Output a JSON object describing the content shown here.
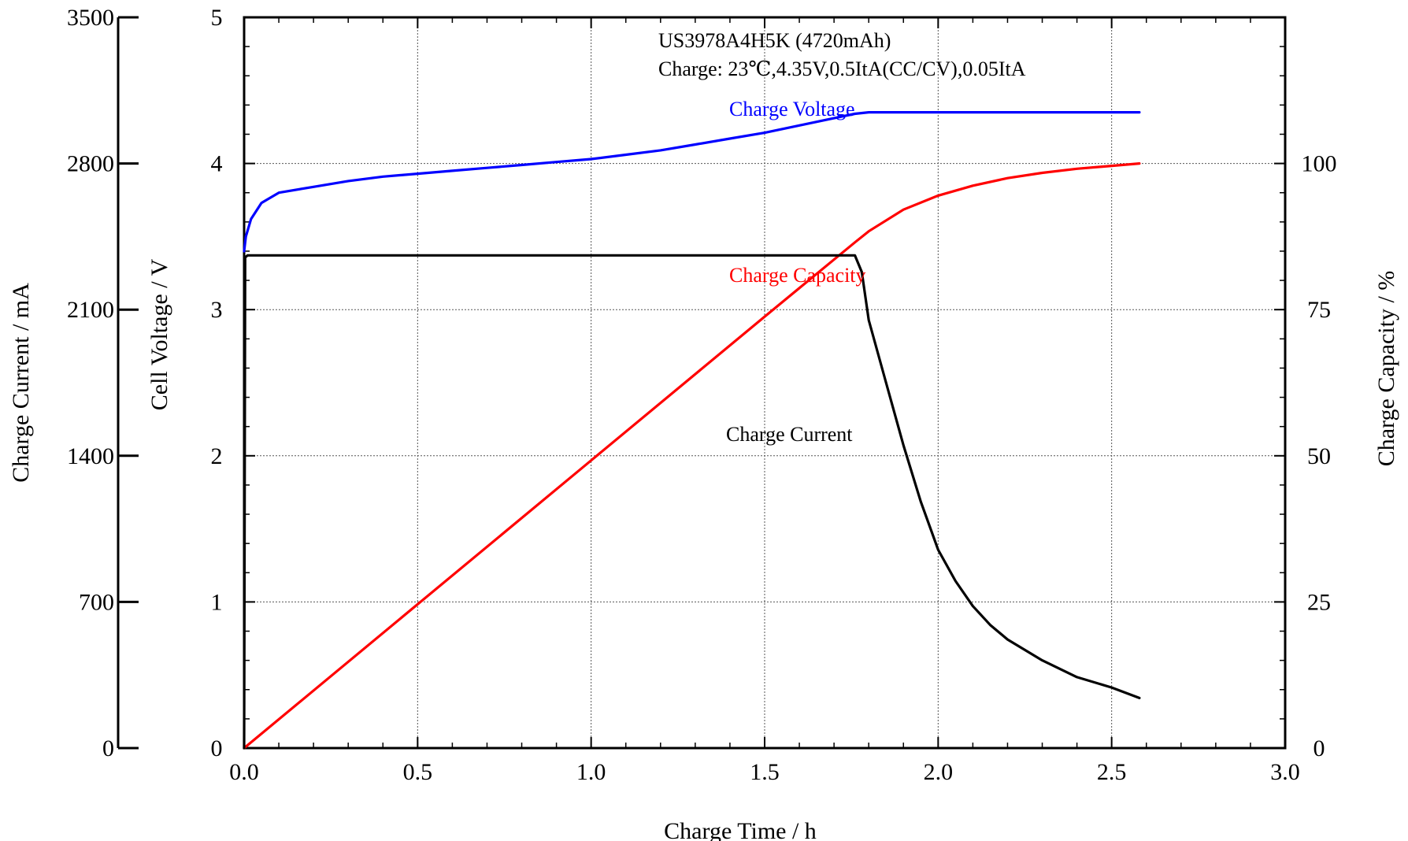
{
  "chart_data": {
    "type": "line",
    "title": "",
    "annotations": [
      "US3978A4H5K (4720mAh)",
      "Charge: 23℃,4.35V,0.5ItA(CC/CV),0.05ItA"
    ],
    "xlabel": "Charge Time / h",
    "xlim": [
      0,
      3.0
    ],
    "xticks": [
      "0.0",
      "0.5",
      "1.0",
      "1.5",
      "2.0",
      "2.5",
      "3.0"
    ],
    "axes": {
      "current": {
        "label": "Charge Current / mA",
        "lim": [
          0,
          3500
        ],
        "ticks": [
          "0",
          "700",
          "1400",
          "2100",
          "2800",
          "3500"
        ]
      },
      "voltage": {
        "label": "Cell Voltage / V",
        "lim": [
          0,
          5
        ],
        "ticks": [
          "0",
          "1",
          "2",
          "3",
          "4",
          "5"
        ]
      },
      "capacity": {
        "label": "Charge Capacity / %",
        "lim": [
          0,
          125
        ],
        "ticks": [
          "0",
          "25",
          "50",
          "75",
          "100"
        ]
      }
    },
    "grid": true,
    "series": [
      {
        "name": "Charge Voltage",
        "axis": "voltage",
        "color": "#0000ff",
        "x": [
          0,
          0.005,
          0.02,
          0.05,
          0.1,
          0.2,
          0.3,
          0.4,
          0.5,
          0.6,
          0.7,
          0.8,
          0.9,
          1.0,
          1.1,
          1.2,
          1.3,
          1.4,
          1.5,
          1.6,
          1.7,
          1.76,
          1.8,
          2.0,
          2.2,
          2.4,
          2.58
        ],
        "y": [
          3.4,
          3.5,
          3.62,
          3.73,
          3.8,
          3.84,
          3.88,
          3.91,
          3.93,
          3.95,
          3.97,
          3.99,
          4.01,
          4.03,
          4.06,
          4.09,
          4.13,
          4.17,
          4.21,
          4.26,
          4.31,
          4.34,
          4.35,
          4.35,
          4.35,
          4.35,
          4.35
        ]
      },
      {
        "name": "Charge Capacity",
        "axis": "capacity",
        "color": "#ff0000",
        "x": [
          0,
          0.5,
          1.0,
          1.5,
          1.76,
          1.8,
          1.9,
          2.0,
          2.1,
          2.2,
          2.3,
          2.4,
          2.5,
          2.58
        ],
        "y": [
          0,
          24.6,
          49.2,
          73.8,
          86.5,
          88.4,
          92.1,
          94.5,
          96.2,
          97.5,
          98.4,
          99.1,
          99.6,
          100
        ]
      },
      {
        "name": "Charge Current",
        "axis": "current",
        "color": "#000000",
        "x": [
          0,
          0.003,
          0.01,
          1.75,
          1.76,
          1.78,
          1.8,
          1.85,
          1.9,
          1.95,
          2.0,
          2.05,
          2.1,
          2.15,
          2.2,
          2.3,
          2.4,
          2.5,
          2.58
        ],
        "y": [
          0,
          2350,
          2360,
          2360,
          2360,
          2280,
          2050,
          1750,
          1450,
          1180,
          950,
          800,
          680,
          590,
          520,
          420,
          340,
          290,
          240
        ]
      }
    ]
  }
}
